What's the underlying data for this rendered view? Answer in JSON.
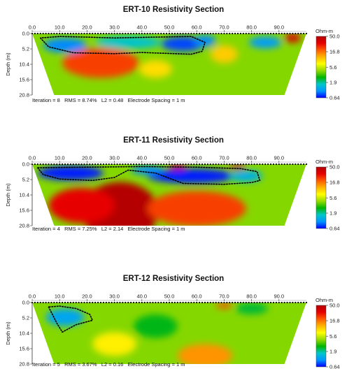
{
  "chart_data": [
    {
      "type": "heatmap",
      "title": "ERT-10 Resistivity Section",
      "ylabel": "Depth (m)",
      "x_ticks": [
        "0.0",
        "10.0",
        "20.0",
        "30.0",
        "40.0",
        "50.0",
        "60.0",
        "70.0",
        "80.0",
        "90.0"
      ],
      "y_ticks": [
        "0.0",
        "5.2",
        "10.4",
        "15.6",
        "20.8"
      ],
      "xlim": [
        0,
        100
      ],
      "ylim": [
        0,
        20.8
      ],
      "colorbar": {
        "unit": "Ohm-m",
        "ticks": [
          "50.0",
          "16.8",
          "5.6",
          "1.9",
          "0.64"
        ]
      },
      "footer": {
        "iteration": "Iteration = 8",
        "rms": "RMS = 8.74%",
        "l2": "L2 = 0.48",
        "spacing": "Electrode Spacing = 1 m"
      },
      "anomalies": [
        {
          "x": 25,
          "depth": 10,
          "rx": 14,
          "ry": 5,
          "resistivity": 22
        },
        {
          "x": 12,
          "depth": 4,
          "rx": 8,
          "ry": 2.5,
          "resistivity": 1.0
        },
        {
          "x": 35,
          "depth": 3,
          "rx": 12,
          "ry": 2.2,
          "resistivity": 1.6
        },
        {
          "x": 55,
          "depth": 3.5,
          "rx": 8,
          "ry": 2.5,
          "resistivity": 0.8
        },
        {
          "x": 63,
          "depth": 2.5,
          "rx": 4,
          "ry": 2,
          "resistivity": 1.0
        },
        {
          "x": 85,
          "depth": 3,
          "rx": 6,
          "ry": 2,
          "resistivity": 1.1
        },
        {
          "x": 95,
          "depth": 1.5,
          "rx": 3,
          "ry": 1.5,
          "resistivity": 35
        },
        {
          "x": 70,
          "depth": 7,
          "rx": 5,
          "ry": 3,
          "resistivity": 10
        },
        {
          "x": 45,
          "depth": 12,
          "rx": 6,
          "ry": 3,
          "resistivity": 9
        }
      ],
      "outline": [
        [
          3,
          1.5
        ],
        [
          6,
          4.5
        ],
        [
          15,
          6.5
        ],
        [
          30,
          6.8
        ],
        [
          40,
          6.4
        ],
        [
          52,
          6.8
        ],
        [
          58,
          7.0
        ],
        [
          62,
          6.0
        ],
        [
          63,
          3.0
        ],
        [
          58,
          1.0
        ],
        [
          45,
          1.2
        ],
        [
          30,
          1.5
        ],
        [
          20,
          1.2
        ],
        [
          10,
          1.0
        ],
        [
          3,
          1.5
        ]
      ]
    },
    {
      "type": "heatmap",
      "title": "ERT-11 Resistivity Section",
      "ylabel": "Depth (m)",
      "x_ticks": [
        "0.0",
        "10.0",
        "20.0",
        "30.0",
        "40.0",
        "50.0",
        "60.0",
        "70.0",
        "80.0",
        "90.0"
      ],
      "y_ticks": [
        "0.0",
        "5.2",
        "10.4",
        "15.6",
        "20.8"
      ],
      "xlim": [
        0,
        100
      ],
      "ylim": [
        0,
        20.8
      ],
      "colorbar": {
        "unit": "Ohm-m",
        "ticks": [
          "50.0",
          "16.8",
          "5.6",
          "1.9",
          "0.64"
        ]
      },
      "footer": {
        "iteration": "Iteration = 4",
        "rms": "RMS = 7.25%",
        "l2": "L2 = 2.14",
        "spacing": "Electrode Spacing = 1 m"
      },
      "anomalies": [
        {
          "x": 32,
          "depth": 16,
          "rx": 14,
          "ry": 10,
          "resistivity": 50
        },
        {
          "x": 18,
          "depth": 14,
          "rx": 12,
          "ry": 6,
          "resistivity": 30
        },
        {
          "x": 60,
          "depth": 15,
          "rx": 18,
          "ry": 6,
          "resistivity": 22
        },
        {
          "x": 14,
          "depth": 3,
          "rx": 12,
          "ry": 2.5,
          "resistivity": 0.7
        },
        {
          "x": 58,
          "depth": 4,
          "rx": 16,
          "ry": 2.5,
          "resistivity": 0.7
        },
        {
          "x": 42,
          "depth": 2,
          "rx": 6,
          "ry": 1.5,
          "resistivity": 1.0
        },
        {
          "x": 78,
          "depth": 4,
          "rx": 6,
          "ry": 2,
          "resistivity": 1.3
        },
        {
          "x": 75,
          "depth": 0.8,
          "rx": 3,
          "ry": 1,
          "resistivity": 50
        },
        {
          "x": 53,
          "depth": 0.8,
          "rx": 3,
          "ry": 1,
          "resistivity": 40
        }
      ],
      "outline": [
        [
          2,
          1.2
        ],
        [
          4,
          3.5
        ],
        [
          10,
          5.0
        ],
        [
          22,
          5.5
        ],
        [
          30,
          4.5
        ],
        [
          35,
          2.0
        ],
        [
          45,
          3.0
        ],
        [
          55,
          6.5
        ],
        [
          70,
          6.8
        ],
        [
          80,
          6.2
        ],
        [
          83,
          5.5
        ],
        [
          82,
          2.5
        ],
        [
          76,
          1.5
        ],
        [
          60,
          1.0
        ],
        [
          40,
          0.8
        ],
        [
          20,
          1.0
        ],
        [
          2,
          1.2
        ]
      ]
    },
    {
      "type": "heatmap",
      "title": "ERT-12 Resistivity Section",
      "ylabel": "Depth (m)",
      "x_ticks": [
        "0.0",
        "10.0",
        "20.0",
        "30.0",
        "40.0",
        "50.0",
        "60.0",
        "70.0",
        "80.0",
        "90.0"
      ],
      "y_ticks": [
        "0.0",
        "5.2",
        "10.4",
        "15.6",
        "20.8"
      ],
      "xlim": [
        0,
        100
      ],
      "ylim": [
        0,
        20.8
      ],
      "colorbar": {
        "unit": "Ohm-m",
        "ticks": [
          "50.0",
          "16.8",
          "5.6",
          "1.9",
          "0.64"
        ]
      },
      "footer": {
        "iteration": "Iteration = 5",
        "rms": "RMS = 3.67%",
        "l2": "L2 = 0.16",
        "spacing": "Electrode Spacing = 1 m"
      },
      "anomalies": [
        {
          "x": 12,
          "depth": 5,
          "rx": 7,
          "ry": 3,
          "resistivity": 1.2
        },
        {
          "x": 63,
          "depth": 18,
          "rx": 10,
          "ry": 4,
          "resistivity": 14
        },
        {
          "x": 45,
          "depth": 8,
          "rx": 8,
          "ry": 4,
          "resistivity": 2.6
        },
        {
          "x": 80,
          "depth": 2,
          "rx": 6,
          "ry": 2,
          "resistivity": 2.4
        },
        {
          "x": 70,
          "depth": 1,
          "rx": 3,
          "ry": 1,
          "resistivity": 20
        },
        {
          "x": 30,
          "depth": 14,
          "rx": 8,
          "ry": 4,
          "resistivity": 8
        }
      ],
      "outline": [
        [
          6,
          1.5
        ],
        [
          9,
          7.0
        ],
        [
          11,
          10.0
        ],
        [
          16,
          7.5
        ],
        [
          22,
          6.0
        ],
        [
          21,
          4.0
        ],
        [
          16,
          2.0
        ],
        [
          10,
          1.2
        ],
        [
          6,
          1.5
        ]
      ]
    }
  ]
}
